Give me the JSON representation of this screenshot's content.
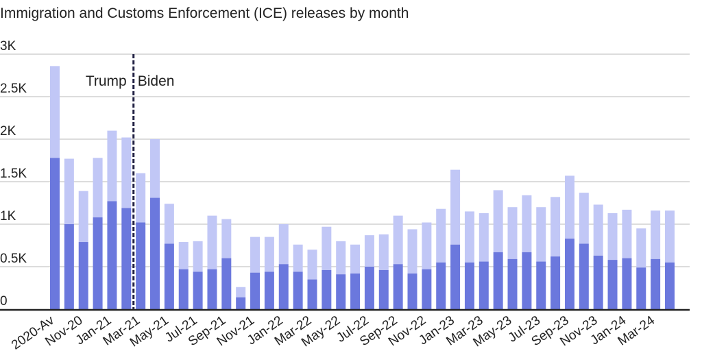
{
  "chart_data": {
    "type": "bar",
    "stacked": true,
    "title": "Immigration and Customs Enforcement (ICE) releases by month",
    "xlabel": "",
    "ylabel": "",
    "ylim": [
      0,
      3000
    ],
    "yticks": [
      {
        "value": 0,
        "label": "0"
      },
      {
        "value": 500,
        "label": "0.5K"
      },
      {
        "value": 1000,
        "label": "1K"
      },
      {
        "value": 1500,
        "label": "1.5K"
      },
      {
        "value": 2000,
        "label": "2K"
      },
      {
        "value": 2500,
        "label": "2.5K"
      },
      {
        "value": 3000,
        "label": "3K"
      }
    ],
    "grid": true,
    "legend": "none",
    "colors": {
      "bottom": "#6b78dd",
      "top": "#c1c7f6",
      "grid": "#d0d0d0",
      "baseline": "#222222",
      "divider": "#222244"
    },
    "categories": [
      "2020-Av",
      "",
      "Nov-20",
      "",
      "Jan-21",
      "",
      "Mar-21",
      "",
      "May-21",
      "",
      "Jul-21",
      "",
      "Sep-21",
      "",
      "Nov-21",
      "",
      "Jan-22",
      "",
      "Mar-22",
      "",
      "May-22",
      "",
      "Jul-22",
      "",
      "Sep-22",
      "",
      "Nov-22",
      "",
      "Jan-23",
      "",
      "Mar-23",
      "",
      "May-23",
      "",
      "Jul-23",
      "",
      "Sep-23",
      "",
      "Nov-23",
      "",
      "Jan-24",
      "",
      "Mar-24",
      ""
    ],
    "bottom_values": [
      1780,
      1000,
      790,
      1080,
      1270,
      1190,
      1020,
      1310,
      770,
      470,
      440,
      470,
      600,
      140,
      430,
      440,
      530,
      440,
      350,
      460,
      410,
      420,
      500,
      460,
      530,
      420,
      470,
      550,
      760,
      550,
      560,
      670,
      590,
      670,
      560,
      620,
      830,
      770,
      630,
      580,
      600,
      490,
      590,
      550
    ],
    "totals": [
      2860,
      1770,
      1390,
      1780,
      2100,
      2020,
      1600,
      2000,
      1240,
      790,
      800,
      1100,
      1060,
      260,
      850,
      850,
      1000,
      760,
      700,
      970,
      800,
      760,
      870,
      880,
      1100,
      940,
      1020,
      1180,
      1640,
      1150,
      1130,
      1400,
      1200,
      1340,
      1200,
      1320,
      1570,
      1370,
      1230,
      1130,
      1170,
      950,
      1160,
      1160
    ],
    "annotations": {
      "left": "Trump",
      "right": "Biden",
      "divider_between_index": 5
    }
  }
}
